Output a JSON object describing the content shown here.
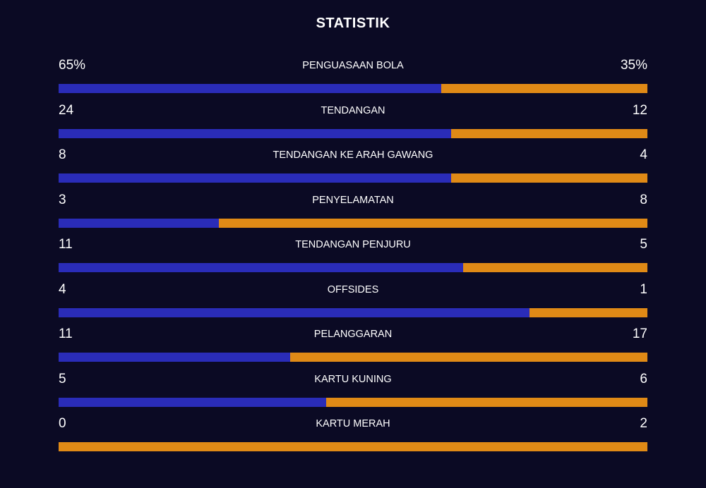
{
  "title": "STATISTIK",
  "colors": {
    "background": "#0b0a24",
    "home": "#2a2cb8",
    "away": "#e08a16",
    "text": "#ffffff"
  },
  "stats": [
    {
      "label": "PENGUASAAN BOLA",
      "home": "65%",
      "away": "35%",
      "home_share": 0.65
    },
    {
      "label": "TENDANGAN",
      "home": "24",
      "away": "12",
      "home_share": 0.6667
    },
    {
      "label": "TENDANGAN KE ARAH GAWANG",
      "home": "8",
      "away": "4",
      "home_share": 0.6667
    },
    {
      "label": "PENYELAMATAN",
      "home": "3",
      "away": "8",
      "home_share": 0.2727
    },
    {
      "label": "TENDANGAN PENJURU",
      "home": "11",
      "away": "5",
      "home_share": 0.6875
    },
    {
      "label": "OFFSIDES",
      "home": "4",
      "away": "1",
      "home_share": 0.8
    },
    {
      "label": "PELANGGARAN",
      "home": "11",
      "away": "17",
      "home_share": 0.3929
    },
    {
      "label": "KARTU KUNING",
      "home": "5",
      "away": "6",
      "home_share": 0.4545
    },
    {
      "label": "KARTU MERAH",
      "home": "0",
      "away": "2",
      "home_share": 0.0
    }
  ]
}
